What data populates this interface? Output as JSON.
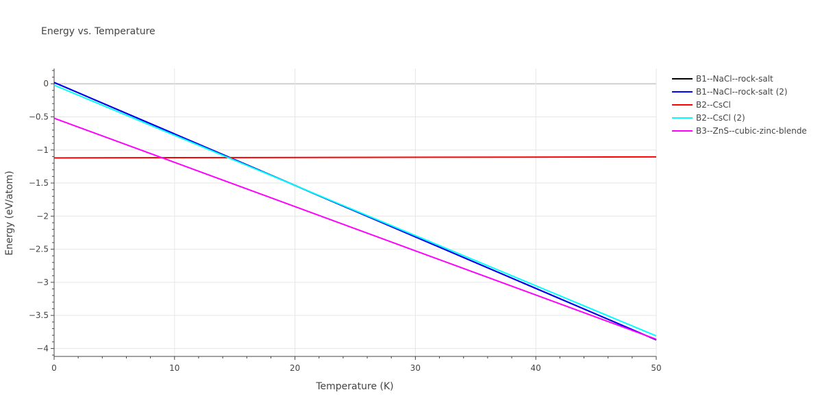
{
  "chart_data": {
    "type": "line",
    "title": "Energy vs. Temperature",
    "xlabel": "Temperature (K)",
    "ylabel": "Energy (eV/atom)",
    "xlim": [
      0,
      50
    ],
    "ylim": [
      -4.12,
      0.23
    ],
    "x_ticks": [
      0,
      10,
      20,
      30,
      40,
      50
    ],
    "y_ticks": [
      0,
      -0.5,
      -1,
      -1.5,
      -2,
      -2.5,
      -3,
      -3.5,
      -4
    ],
    "grid": true,
    "legend_position": "top-right",
    "series": [
      {
        "name": "B1--NaCl--rock-salt",
        "color": "#000000",
        "x": [
          0,
          50
        ],
        "y": [
          0.02,
          -3.87
        ]
      },
      {
        "name": "B1--NaCl--rock-salt (2)",
        "color": "#0000ff",
        "x": [
          0,
          50
        ],
        "y": [
          0.02,
          -3.87
        ]
      },
      {
        "name": "B2--CsCl",
        "color": "#ff0000",
        "x": [
          0,
          50
        ],
        "y": [
          -1.12,
          -1.105
        ]
      },
      {
        "name": "B2--CsCl (2)",
        "color": "#00ffff",
        "x": [
          0,
          50
        ],
        "y": [
          -0.02,
          -3.81
        ]
      },
      {
        "name": "B3--ZnS--cubic-zinc-blende",
        "color": "#ff00ff",
        "x": [
          0,
          50
        ],
        "y": [
          -0.52,
          -3.86
        ]
      }
    ]
  }
}
